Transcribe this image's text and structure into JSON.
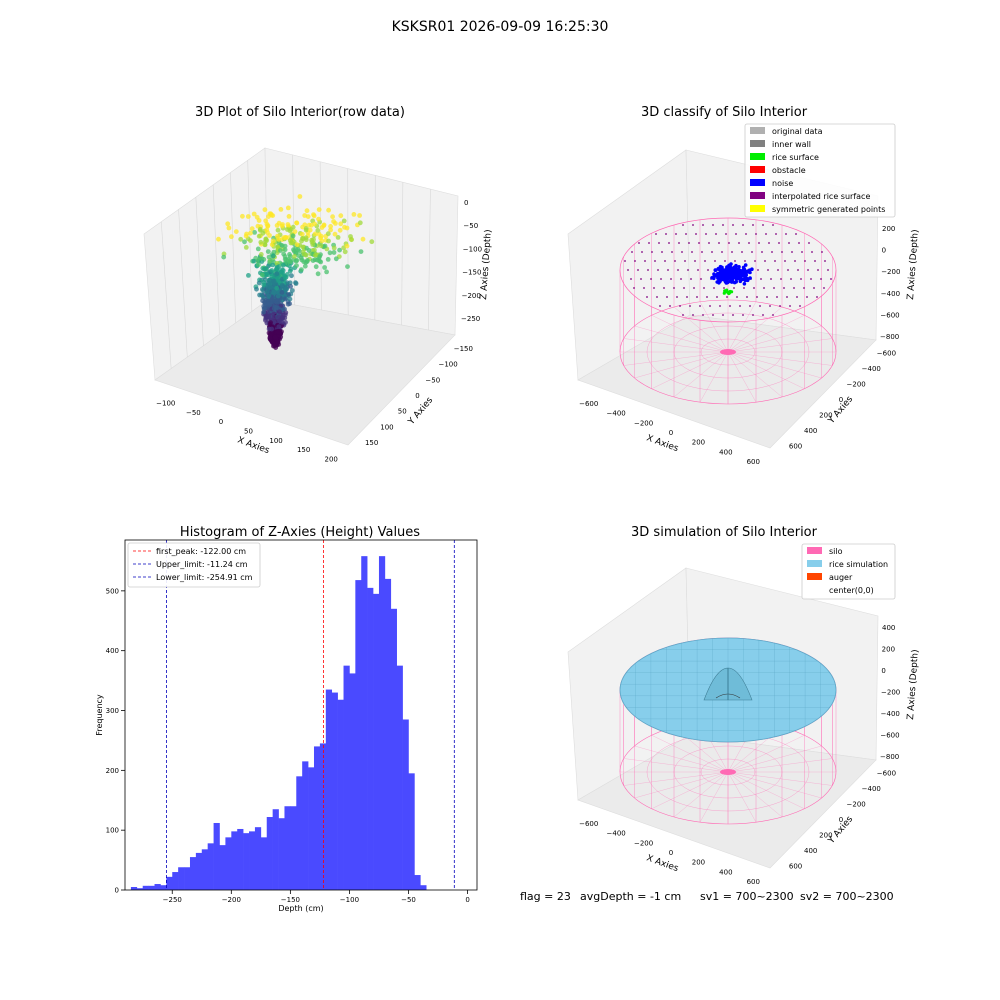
{
  "suptitle": "KSKSR01 2026-09-09 16:25:30",
  "footer": {
    "flag": "flag = 23",
    "avg_depth": "avgDepth = -1 cm",
    "sv1": "sv1 = 700~2300",
    "sv2": "sv2 = 700~2300"
  },
  "chart_data": [
    {
      "type": "scatter",
      "title": "3D Plot of Silo Interior(row data)",
      "xlabel": "X Axies",
      "ylabel": "Y Axies",
      "zlabel": "Z Axies (Depth)",
      "x_ticks": [
        "−100",
        "−50",
        "0",
        "50",
        "100",
        "150",
        "200"
      ],
      "y_ticks": [
        "−150",
        "−100",
        "−50",
        "0",
        "50",
        "100",
        "150"
      ],
      "z_ticks": [
        "0",
        "−50",
        "−100",
        "−150",
        "−200",
        "−250"
      ],
      "colormap": "viridis",
      "z_range": [
        -270,
        0
      ]
    },
    {
      "type": "scatter",
      "title": "3D classify of Silo Interior",
      "xlabel": "X Axies",
      "ylabel": "Y Axies",
      "zlabel": "Z Axies (Depth)",
      "x_ticks": [
        "−600",
        "−400",
        "−200",
        "0",
        "200",
        "400",
        "600"
      ],
      "y_ticks": [
        "−600",
        "−400",
        "−200",
        "0",
        "200",
        "400",
        "600"
      ],
      "z_ticks": [
        "200",
        "0",
        "−200",
        "−400",
        "−600",
        "−800"
      ],
      "legend_position": "top-right",
      "legend": [
        {
          "label": "original data",
          "color": "#b0b0b0"
        },
        {
          "label": "inner wall",
          "color": "#808080"
        },
        {
          "label": "rice surface",
          "color": "#00ee00"
        },
        {
          "label": "obstacle",
          "color": "#ff0000"
        },
        {
          "label": "noise",
          "color": "#0000ff"
        },
        {
          "label": "interpolated rice surface",
          "color": "#800080"
        },
        {
          "label": "symmetric generated points",
          "color": "#ffff00"
        }
      ]
    },
    {
      "type": "bar",
      "title": "Histogram of Z-Axies (Height) Values",
      "xlabel": "Depth (cm)",
      "ylabel": "Frequency",
      "xlim": [
        -290,
        8
      ],
      "ylim": [
        0,
        585
      ],
      "x_ticks": [
        -250,
        -200,
        -150,
        -100,
        -50,
        0
      ],
      "x_tick_labels": [
        "−250",
        "−200",
        "−150",
        "−100",
        "−50",
        "0"
      ],
      "y_ticks": [
        0,
        100,
        200,
        300,
        400,
        500
      ],
      "bin_start": -285,
      "bin_width": 5,
      "values": [
        5,
        3,
        7,
        7,
        10,
        8,
        22,
        30,
        38,
        38,
        55,
        62,
        68,
        78,
        112,
        75,
        88,
        98,
        102,
        95,
        98,
        105,
        88,
        122,
        135,
        120,
        140,
        140,
        190,
        215,
        205,
        240,
        245,
        335,
        330,
        318,
        375,
        362,
        518,
        558,
        505,
        495,
        558,
        520,
        470,
        375,
        285,
        195,
        25,
        8
      ],
      "bar_color": "#4a4aff",
      "lines": [
        {
          "label": "first_peak: -122.00 cm",
          "x": -122.0,
          "color": "#ff0000"
        },
        {
          "label": "Upper_limit: -11.24 cm",
          "x": -11.24,
          "color": "#0000bb"
        },
        {
          "label": "Lower_limit: -254.91 cm",
          "x": -254.91,
          "color": "#0000bb"
        }
      ],
      "legend_position": "top-left"
    },
    {
      "type": "scatter",
      "title": "3D simulation of Silo Interior",
      "xlabel": "X Axies",
      "ylabel": "Y Axies",
      "zlabel": "Z Axies (Depth)",
      "x_ticks": [
        "−600",
        "−400",
        "−200",
        "0",
        "200",
        "400",
        "600"
      ],
      "y_ticks": [
        "−600",
        "−400",
        "−200",
        "0",
        "200",
        "400",
        "600"
      ],
      "z_ticks": [
        "400",
        "200",
        "0",
        "−200",
        "−400",
        "−600",
        "−800"
      ],
      "legend_position": "top-right",
      "legend": [
        {
          "label": "silo",
          "color": "#ff69b4"
        },
        {
          "label": "rice simulation",
          "color": "#87ceeb"
        },
        {
          "label": "auger",
          "color": "#ff4500"
        },
        {
          "label": "center(0,0)",
          "color": "#ffffff"
        }
      ]
    }
  ]
}
